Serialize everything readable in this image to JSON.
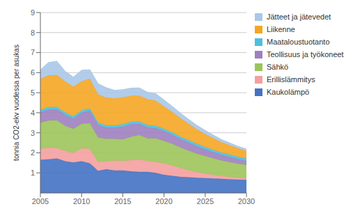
{
  "chart_data": {
    "type": "area",
    "stacked": true,
    "ylabel": "tonnia CO2-ekv vuodessa per asukas",
    "x": [
      2005,
      2006,
      2007,
      2008,
      2009,
      2010,
      2011,
      2012,
      2013,
      2014,
      2015,
      2016,
      2017,
      2018,
      2019,
      2020,
      2021,
      2022,
      2023,
      2024,
      2025,
      2026,
      2027,
      2028,
      2029,
      2030
    ],
    "xlim": [
      2005,
      2030
    ],
    "xticks": [
      2005,
      2010,
      2015,
      2020,
      2025,
      2030
    ],
    "ylim": [
      0,
      9
    ],
    "yticks": [
      1,
      2,
      3,
      4,
      5,
      6,
      7,
      8,
      9
    ],
    "grid": true,
    "legend": "right",
    "series": [
      {
        "name": "Kaukolämpö",
        "color": "#4472C4",
        "values": [
          1.65,
          1.68,
          1.72,
          1.58,
          1.52,
          1.58,
          1.48,
          1.1,
          1.18,
          1.12,
          1.12,
          1.08,
          1.05,
          1.05,
          1.0,
          0.9,
          0.85,
          0.8,
          0.78,
          0.76,
          0.74,
          0.72,
          0.7,
          0.68,
          0.66,
          0.65
        ]
      },
      {
        "name": "Erillislämmitys",
        "color": "#F4A0A0",
        "values": [
          0.55,
          0.58,
          0.52,
          0.52,
          0.48,
          0.65,
          0.72,
          0.45,
          0.4,
          0.5,
          0.48,
          0.55,
          0.62,
          0.55,
          0.55,
          0.58,
          0.52,
          0.45,
          0.35,
          0.28,
          0.22,
          0.18,
          0.14,
          0.12,
          0.1,
          0.08
        ]
      },
      {
        "name": "Sähkö",
        "color": "#9DC45A",
        "values": [
          1.3,
          1.35,
          1.38,
          1.25,
          1.2,
          1.22,
          1.28,
          1.22,
          1.12,
          1.08,
          1.08,
          1.18,
          1.22,
          1.12,
          1.18,
          1.12,
          1.08,
          1.02,
          0.98,
          0.92,
          0.88,
          0.83,
          0.78,
          0.74,
          0.7,
          0.67
        ]
      },
      {
        "name": "Teollisuus ja työkoneet",
        "color": "#9E7FBF",
        "values": [
          0.52,
          0.55,
          0.55,
          0.55,
          0.5,
          0.55,
          0.62,
          0.62,
          0.55,
          0.55,
          0.62,
          0.62,
          0.55,
          0.55,
          0.5,
          0.48,
          0.45,
          0.42,
          0.4,
          0.37,
          0.33,
          0.3,
          0.27,
          0.25,
          0.22,
          0.2
        ]
      },
      {
        "name": "Maataloustuotanto",
        "color": "#4DBFDF",
        "values": [
          0.12,
          0.12,
          0.12,
          0.12,
          0.12,
          0.12,
          0.12,
          0.12,
          0.12,
          0.12,
          0.12,
          0.12,
          0.12,
          0.12,
          0.12,
          0.12,
          0.12,
          0.12,
          0.12,
          0.12,
          0.12,
          0.12,
          0.12,
          0.12,
          0.12,
          0.12
        ]
      },
      {
        "name": "Liikenne",
        "color": "#F5A623",
        "values": [
          1.55,
          1.58,
          1.6,
          1.55,
          1.48,
          1.45,
          1.48,
          1.42,
          1.38,
          1.35,
          1.35,
          1.3,
          1.3,
          1.28,
          1.25,
          1.12,
          1.02,
          0.92,
          0.82,
          0.72,
          0.65,
          0.58,
          0.52,
          0.46,
          0.42,
          0.38
        ]
      },
      {
        "name": "Jätteet ja jätevedet",
        "color": "#A8C8E8",
        "values": [
          0.45,
          0.65,
          0.68,
          0.5,
          0.48,
          0.55,
          0.45,
          0.52,
          0.5,
          0.4,
          0.38,
          0.38,
          0.38,
          0.35,
          0.35,
          0.32,
          0.28,
          0.25,
          0.22,
          0.2,
          0.18,
          0.15,
          0.13,
          0.12,
          0.1,
          0.09
        ]
      }
    ]
  }
}
